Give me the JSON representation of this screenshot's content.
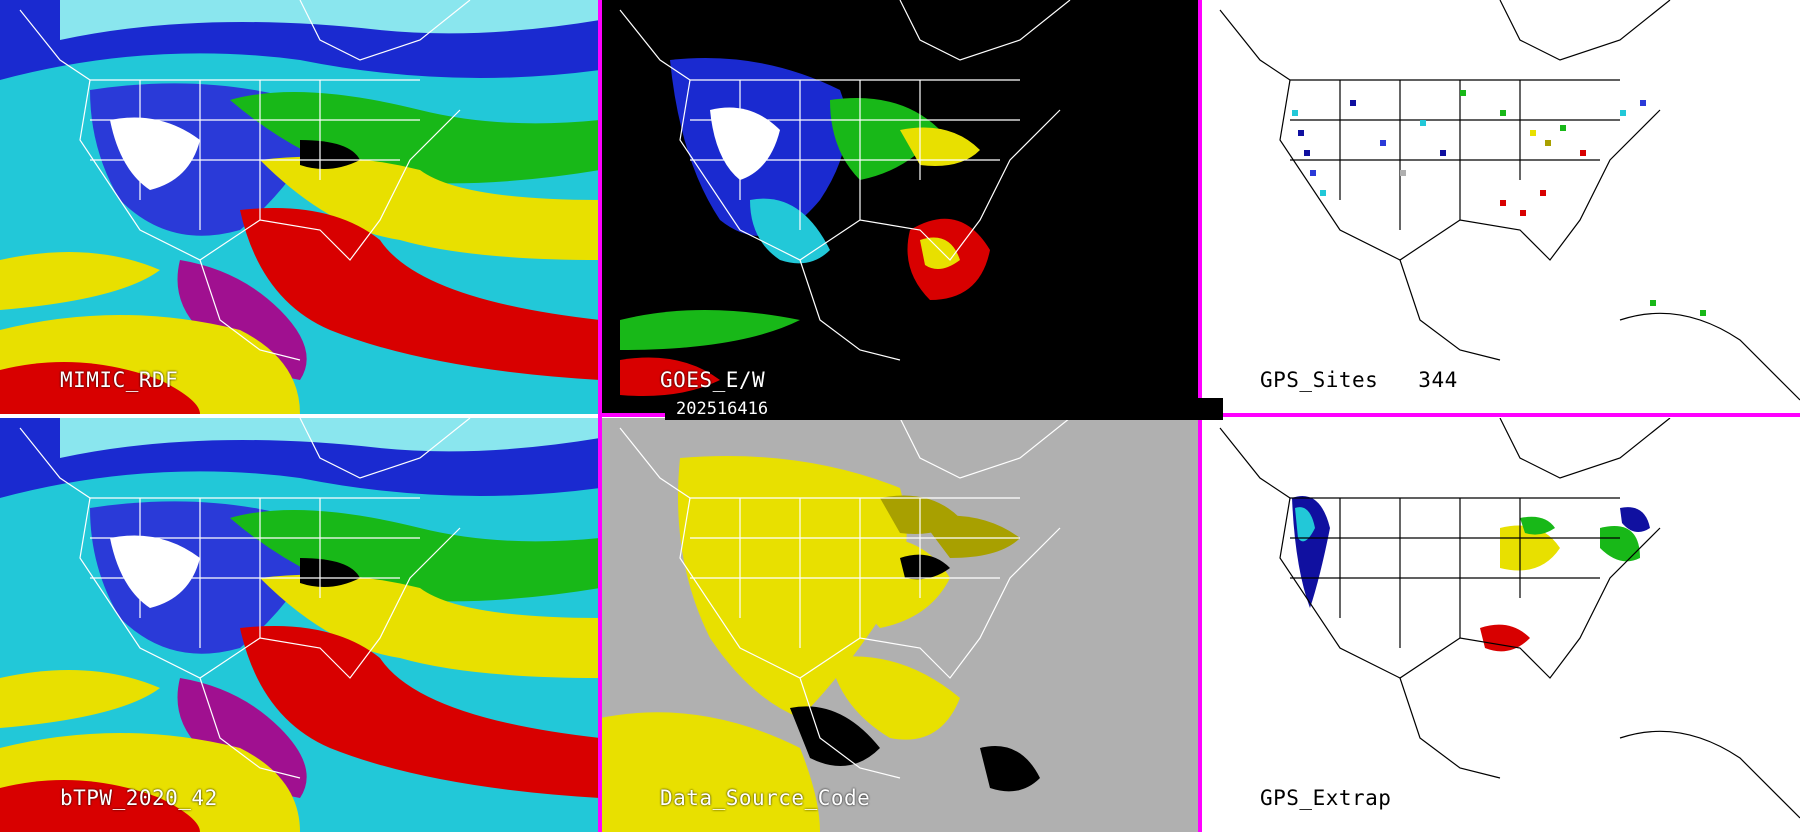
{
  "panels": {
    "mimic_rdf": {
      "label": "MIMIC_RDF"
    },
    "goes": {
      "label": "GOES_E/W"
    },
    "gps_sites": {
      "label": "GPS_Sites",
      "count": "344"
    },
    "btpw": {
      "label": "bTPW_2020_42"
    },
    "data_source": {
      "label": "Data_Source_Code"
    },
    "gps_extrap": {
      "label": "GPS_Extrap"
    }
  },
  "timestamp": "202516416",
  "colors": {
    "divider": "#ff00ff",
    "dark_blue": "#1010a0",
    "blue": "#2a3ad8",
    "cyan": "#22c8d8",
    "light_cyan": "#8ae6ee",
    "green": "#18b818",
    "yellow": "#e8e000",
    "olive": "#a8a000",
    "red": "#d80000",
    "magenta": "#a01090",
    "gray": "#b0b0b0",
    "white": "#ffffff",
    "black": "#000000"
  }
}
